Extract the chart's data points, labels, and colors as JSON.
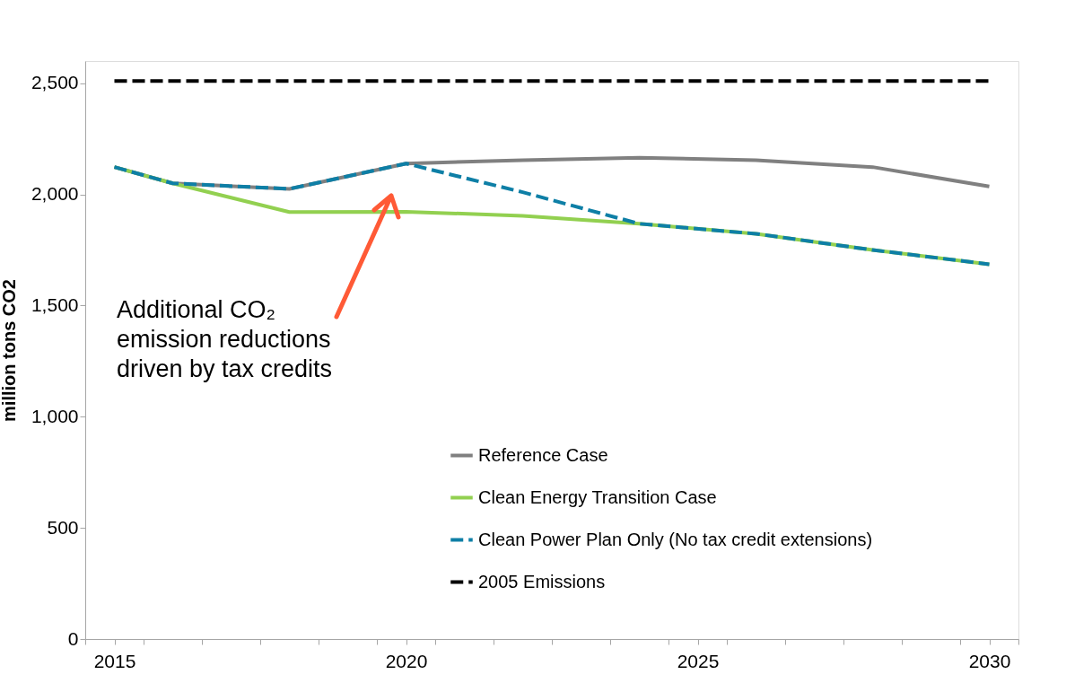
{
  "chart_data": {
    "type": "line",
    "x": [
      2015,
      2016,
      2018,
      2020,
      2022,
      2024,
      2026,
      2028,
      2030
    ],
    "series": [
      {
        "name": "Reference Case",
        "color": "#808080",
        "line_style": "solid",
        "values": [
          2123,
          2050,
          2025,
          2139,
          2154,
          2165,
          2154,
          2123,
          2036
        ]
      },
      {
        "name": "Clean Energy Transition Case",
        "color": "#92d050",
        "line_style": "solid",
        "values": [
          2123,
          2050,
          1921,
          1922,
          1904,
          1868,
          1823,
          1750,
          1686
        ]
      },
      {
        "name": "Clean Power Plan Only (No tax credit extensions)",
        "color": "#0e7fa6",
        "line_style": "dashed",
        "values": [
          2123,
          2050,
          2025,
          2139,
          2010,
          1868,
          1823,
          1750,
          1686
        ]
      },
      {
        "name": "2005 Emissions",
        "color": "#000000",
        "line_style": "dashed",
        "values": [
          2510,
          2510,
          2510,
          2510,
          2510,
          2510,
          2510,
          2510,
          2510
        ]
      }
    ],
    "ylabel": "million tons CO2",
    "xlim": [
      2014.5,
      2030.5
    ],
    "xticks": [
      {
        "value": 2014.5,
        "label": null
      },
      2015,
      {
        "value": 2015.5,
        "label": null
      },
      {
        "value": 2016.5,
        "label": null
      },
      {
        "value": 2017.5,
        "label": null
      },
      {
        "value": 2018.5,
        "label": null
      },
      {
        "value": 2019.5,
        "label": null
      },
      2020,
      {
        "value": 2020.5,
        "label": null
      },
      {
        "value": 2021.5,
        "label": null
      },
      {
        "value": 2022.5,
        "label": null
      },
      {
        "value": 2023.5,
        "label": null
      },
      {
        "value": 2024.5,
        "label": null
      },
      2025,
      {
        "value": 2025.5,
        "label": null
      },
      {
        "value": 2026.5,
        "label": null
      },
      {
        "value": 2027.5,
        "label": null
      },
      {
        "value": 2028.5,
        "label": null
      },
      {
        "value": 2029.5,
        "label": null
      },
      2030,
      {
        "value": 2030.5,
        "label": null
      }
    ],
    "ylim": [
      0,
      2600
    ],
    "yticks": [
      {
        "value": 0,
        "label": "0"
      },
      {
        "value": 500,
        "label": "500"
      },
      {
        "value": 1000,
        "label": "1,000"
      },
      {
        "value": 1500,
        "label": "1,500"
      },
      {
        "value": 2000,
        "label": "2,000"
      },
      {
        "value": 2500,
        "label": "2,500"
      }
    ],
    "annotations": [
      "Additional CO₂\nemission reductions\ndriven by tax credits"
    ],
    "legend": "bottom right",
    "grid": false,
    "marker": "none"
  }
}
